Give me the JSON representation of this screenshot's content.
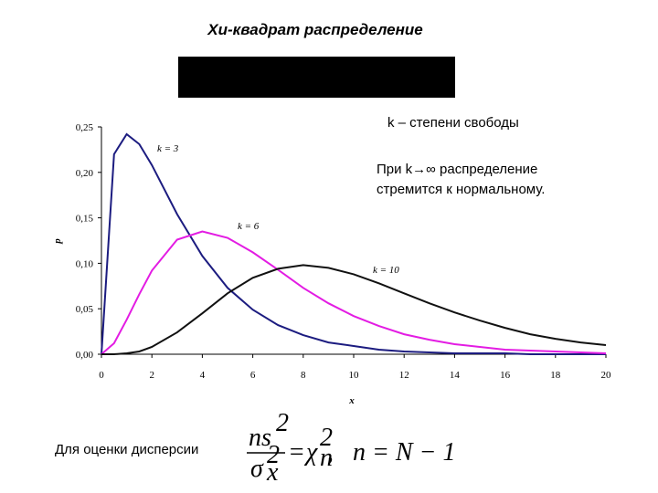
{
  "title": "Хи-квадрат распределение",
  "note_dof": "k – степени свободы",
  "note_limit": [
    "При k→∞ распределение",
    "стремится к нормальному."
  ],
  "formula": {
    "caption": "Для оценки дисперсии",
    "numerator": "ns",
    "numerator_sup": "2",
    "denominator": "σ",
    "denominator_sup": "2",
    "denominator_sub": "x",
    "equals": "=",
    "chi": "χ",
    "chi_sup": "2",
    "chi_sub": "n",
    "rest": ",   n = N − 1"
  },
  "chart_data": {
    "type": "line",
    "x_label": "x",
    "y_label": "p",
    "x": [
      0,
      0.5,
      1,
      1.5,
      2,
      3,
      4,
      5,
      6,
      7,
      8,
      9,
      10,
      11,
      12,
      13,
      14,
      15,
      16,
      17,
      18,
      19,
      20
    ],
    "series": [
      {
        "name": "k = 3",
        "color": "#1c1c80",
        "values": [
          0,
          0.22,
          0.242,
          0.231,
          0.208,
          0.154,
          0.108,
          0.073,
          0.049,
          0.032,
          0.021,
          0.013,
          0.009,
          0.005,
          0.003,
          0.002,
          0.001,
          0.001,
          0.001,
          0,
          0,
          0,
          0
        ]
      },
      {
        "name": "k = 6",
        "color": "#e31ce3",
        "values": [
          0,
          0.012,
          0.038,
          0.066,
          0.092,
          0.126,
          0.135,
          0.128,
          0.112,
          0.093,
          0.073,
          0.056,
          0.042,
          0.031,
          0.022,
          0.016,
          0.011,
          0.008,
          0.005,
          0.004,
          0.003,
          0.002,
          0.001
        ]
      },
      {
        "name": "k = 10",
        "color": "#111111",
        "values": [
          0,
          0,
          0.001,
          0.003,
          0.008,
          0.024,
          0.045,
          0.067,
          0.084,
          0.094,
          0.098,
          0.095,
          0.088,
          0.078,
          0.067,
          0.056,
          0.046,
          0.037,
          0.029,
          0.022,
          0.017,
          0.013,
          0.01
        ]
      }
    ],
    "xlim": [
      0,
      20
    ],
    "xticks": [
      0,
      2,
      4,
      6,
      8,
      10,
      12,
      14,
      16,
      18,
      20
    ],
    "ylim": [
      0,
      0.25
    ],
    "yticks": [
      {
        "value": 0,
        "label": "0,00"
      },
      {
        "value": 0.05,
        "label": "0,05"
      },
      {
        "value": 0.1,
        "label": "0,10"
      },
      {
        "value": 0.15,
        "label": "0,15"
      },
      {
        "value": 0.2,
        "label": "0,20"
      },
      {
        "value": 0.25,
        "label": "0,25"
      }
    ]
  }
}
